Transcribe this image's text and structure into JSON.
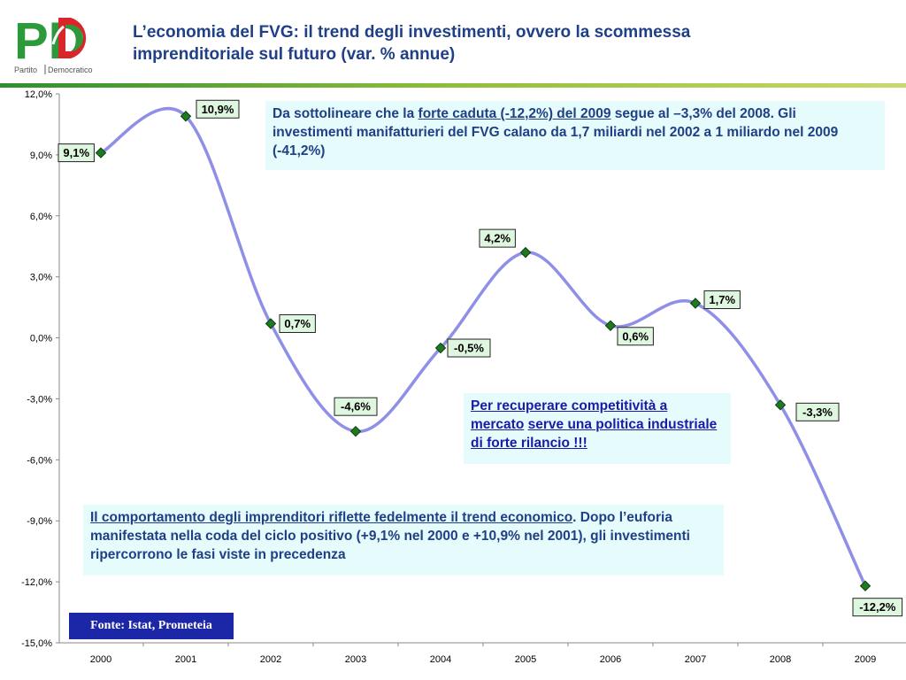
{
  "logo": {
    "letters": "PD",
    "name_left": "Partito",
    "name_right": "Democratico"
  },
  "title": {
    "line1": "L’economia del FVG: il trend degli investimenti, ovvero la scommessa",
    "line2": "imprenditoriale sul futuro (var. % annue)"
  },
  "colors": {
    "line": "#8f8fe8",
    "marker": "#1e7a1e",
    "label_bg": "#dff7df",
    "annotation_bg": "#e6fbfb",
    "title": "#1f3f86",
    "source_bg": "#1b27a6"
  },
  "chart_data": {
    "type": "line",
    "categories": [
      "2000",
      "2001",
      "2002",
      "2003",
      "2004",
      "2005",
      "2006",
      "2007",
      "2008",
      "2009"
    ],
    "series": [
      {
        "values": [
          9.1,
          10.9,
          0.7,
          -4.6,
          -0.5,
          4.2,
          0.6,
          1.7,
          -3.3,
          -12.2
        ]
      }
    ],
    "data_labels": [
      "9,1%",
      "10,9%",
      "0,7%",
      "-4,6%",
      "-0,5%",
      "4,2%",
      "0,6%",
      "1,7%",
      "-3,3%",
      "-12,2%"
    ],
    "ylim": [
      -15,
      12
    ],
    "yticks": [
      12,
      9,
      6,
      3,
      0,
      -3,
      -6,
      -9,
      -12,
      -15
    ],
    "ytick_labels": [
      "12,0%",
      "9,0%",
      "6,0%",
      "3,0%",
      "0,0%",
      "-3,0%",
      "-6,0%",
      "-9,0%",
      "-12,0%",
      "-15,0%"
    ],
    "smooth": true,
    "grid": false
  },
  "annotations": {
    "a1_pre": "Da sottolineare che la ",
    "a1_link": "forte caduta (-12,2%) del 2009",
    "a1_post": " segue al –3,3% del 2008. Gli investimenti manifatturieri del FVG calano da 1,7 miliardi nel 2002 a 1 miliardo nel 2009 (-41,2%)",
    "a2_part1": "Per recuperare competitività a mercato",
    "a2_part2": "serve una politica industriale di forte rilancio !!!",
    "a3_link": "Il comportamento degli imprenditori riflette fedelmente il trend economico",
    "a3_post": ". Dopo l’euforia manifestata nella coda del ciclo positivo (+9,1% nel 2000 e +10,9% nel 2001), gli investimenti ripercorrono le fasi viste in precedenza"
  },
  "source": "Fonte: Istat, Prometeia"
}
